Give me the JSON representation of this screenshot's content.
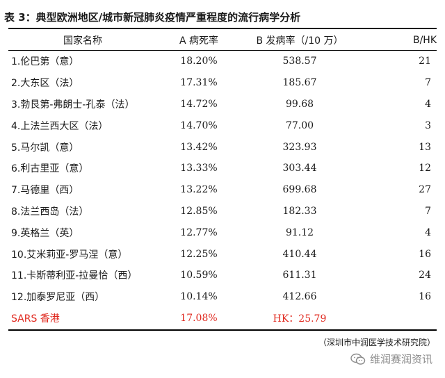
{
  "title": "表 3：典型欧洲地区/城市新冠肺炎疫情严重程度的流行病学分析",
  "table": {
    "headers": [
      "国家名称",
      "A 病死率",
      "B 发病率（/10 万）",
      "B/HK"
    ],
    "rows": [
      {
        "name": "1.伦巴第（意）",
        "a": "18.20%",
        "b": "538.57",
        "ratio": "21"
      },
      {
        "name": "2.大东区（法）",
        "a": "17.31%",
        "b": "185.67",
        "ratio": "7"
      },
      {
        "name": "3.勃艮第-弗朗士-孔泰（法）",
        "a": "14.72%",
        "b": "99.68",
        "ratio": "4"
      },
      {
        "name": "4.上法兰西大区（法）",
        "a": "14.70%",
        "b": "77.00",
        "ratio": "3"
      },
      {
        "name": "5.马尔凯（意）",
        "a": "13.42%",
        "b": "323.93",
        "ratio": "13"
      },
      {
        "name": "6.利古里亚（意）",
        "a": "13.33%",
        "b": "303.44",
        "ratio": "12"
      },
      {
        "name": "7.马德里（西）",
        "a": "13.22%",
        "b": "699.68",
        "ratio": "27"
      },
      {
        "name": "8.法兰西岛（法）",
        "a": "12.85%",
        "b": "182.33",
        "ratio": "7"
      },
      {
        "name": "9.英格兰（英）",
        "a": "12.77%",
        "b": "91.12",
        "ratio": "4"
      },
      {
        "name": "10.艾米莉亚-罗马涅（意）",
        "a": "12.25%",
        "b": "410.44",
        "ratio": "16"
      },
      {
        "name": "11.卡斯蒂利亚-拉曼恰（西）",
        "a": "10.59%",
        "b": "611.31",
        "ratio": "24"
      },
      {
        "name": "12.加泰罗尼亚（西）",
        "a": "10.14%",
        "b": "412.66",
        "ratio": "16"
      }
    ],
    "sars": {
      "name": "SARS 香港",
      "a": "17.08%",
      "b": "HK：25.79",
      "ratio": ""
    }
  },
  "source": "（深圳市中润医学技术研究院）",
  "watermark": "维润赛润资讯",
  "watermark_icon": "wechat-icon",
  "colors": {
    "highlight": "#e0281e"
  }
}
